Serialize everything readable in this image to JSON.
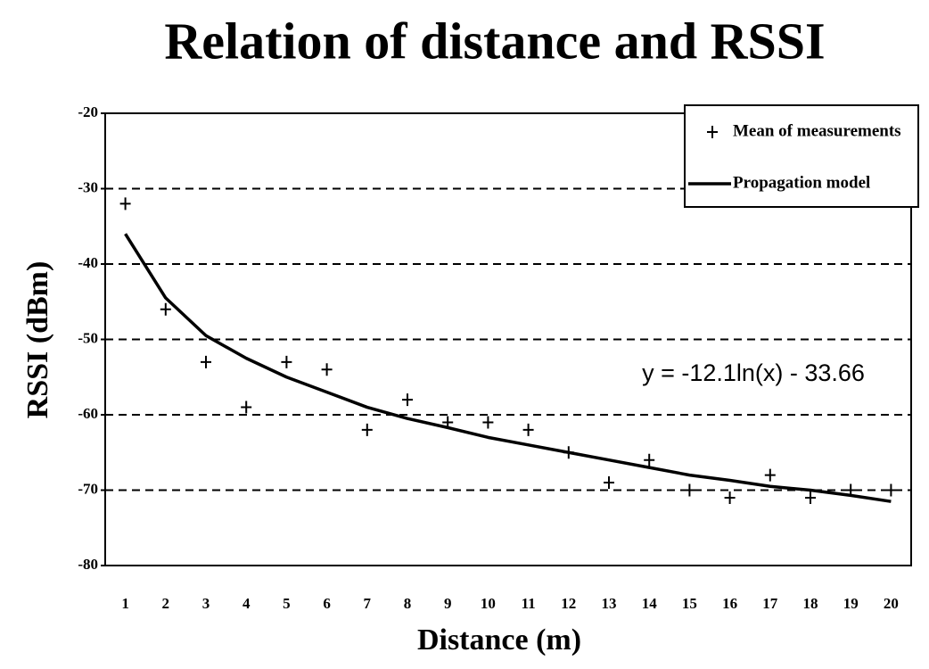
{
  "chart_data": {
    "type": "scatter_line",
    "title": "Relation of distance and RSSI",
    "x_label": "Distance (m)",
    "y_label": "RSSI (dBm)",
    "annotation": "y = -12.1ln(x) - 33.66",
    "categories": [
      "1",
      "2",
      "3",
      "4",
      "5",
      "6",
      "7",
      "8",
      "9",
      "10",
      "11",
      "12",
      "13",
      "14",
      "15",
      "16",
      "17",
      "18",
      "19",
      "20"
    ],
    "series": [
      {
        "name": "Mean of measurements",
        "kind": "marker",
        "color": "#000000",
        "values": [
          -32,
          -46,
          -53,
          -59,
          -53,
          -54,
          -62,
          -58,
          -61,
          -61,
          -62,
          -65,
          -69,
          -66,
          -70,
          -71,
          -68,
          -71,
          -70,
          -70
        ]
      },
      {
        "name": "Propagation model",
        "kind": "line",
        "color": "#000000",
        "values": [
          -36,
          -44.5,
          -49.5,
          -52.5,
          -55,
          -57,
          -59,
          -60.5,
          -61.7,
          -63,
          -64,
          -65,
          -66,
          -67,
          -68,
          -68.7,
          -69.5,
          -70,
          -70.7,
          -71.5
        ]
      }
    ],
    "ylim": [
      -80,
      -20
    ],
    "yticks": [
      -20,
      -30,
      -40,
      -50,
      -60,
      -70,
      -80
    ],
    "grid": true,
    "legend": "upper right"
  }
}
